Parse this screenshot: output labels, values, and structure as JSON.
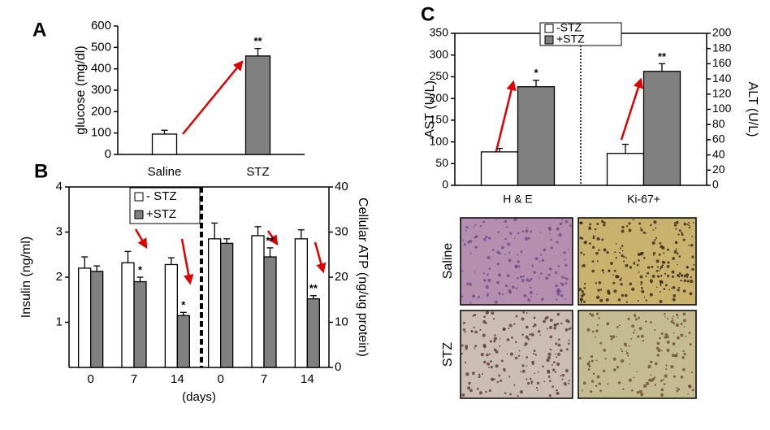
{
  "chart_data": [
    {
      "type": "bar",
      "panel": "A",
      "ylabel": "glucose (mg/dl)",
      "categories": [
        "Saline",
        "STZ"
      ],
      "values": [
        95,
        460
      ],
      "errors": [
        18,
        35
      ],
      "colors": [
        "#ffffff",
        "#808080"
      ],
      "annotations": [
        null,
        "**"
      ],
      "ylim": [
        0,
        600
      ],
      "yticks": [
        0,
        100,
        200,
        300,
        400,
        500,
        600
      ]
    },
    {
      "type": "bar",
      "panel": "B",
      "ylabel": "Insulin (ng/ml)",
      "y2label": "Cellular ATP (ng/ug protein)",
      "xlabel": "(days)",
      "categories": [
        "0",
        "7",
        "14",
        "0",
        "7",
        "14"
      ],
      "series": [
        {
          "name": "- STZ",
          "color": "#ffffff",
          "values": [
            2.2,
            2.32,
            2.28,
            null,
            null,
            null
          ],
          "errors": [
            0.25,
            0.25,
            0.15,
            null,
            null,
            null
          ]
        },
        {
          "name": "+STZ",
          "color": "#808080",
          "values": [
            2.13,
            1.9,
            1.15,
            null,
            null,
            null
          ],
          "errors": [
            0.12,
            0.1,
            0.07,
            null,
            null,
            null
          ],
          "annotations": [
            null,
            "*",
            "*",
            null,
            null,
            null
          ]
        },
        {
          "color": "#ffffff",
          "axis": "y2",
          "values": [
            null,
            null,
            null,
            28.5,
            29.2,
            28.5
          ],
          "errors": [
            null,
            null,
            null,
            3.5,
            2,
            2
          ]
        },
        {
          "color": "#808080",
          "axis": "y2",
          "values": [
            null,
            null,
            null,
            27.5,
            24.5,
            15.2
          ],
          "errors": [
            null,
            null,
            null,
            1,
            2,
            0.7
          ],
          "annotations": [
            null,
            null,
            null,
            null,
            "**",
            "**"
          ]
        }
      ],
      "ylim": [
        0,
        4
      ],
      "yticks": [
        1,
        2,
        3,
        4
      ],
      "y2lim": [
        0,
        40
      ],
      "y2ticks": [
        0,
        10,
        20,
        30,
        40
      ]
    },
    {
      "type": "bar",
      "panel": "C",
      "ylabel": "AST (U/L)",
      "y2label": "ALT (U/L)",
      "categories": [
        "H & E",
        "Ki-67+"
      ],
      "series": [
        {
          "name": "-STZ",
          "color": "#ffffff",
          "values": [
            77,
            null
          ],
          "errors": [
            8,
            null
          ]
        },
        {
          "name": "+STZ",
          "color": "#808080",
          "values": [
            227,
            null
          ],
          "errors": [
            15,
            null
          ],
          "annotations": [
            "*",
            null
          ]
        },
        {
          "color": "#ffffff",
          "axis": "y2",
          "values": [
            null,
            42
          ],
          "errors": [
            null,
            12
          ]
        },
        {
          "color": "#808080",
          "axis": "y2",
          "values": [
            null,
            150
          ],
          "errors": [
            null,
            10
          ],
          "annotations": [
            null,
            "**"
          ]
        }
      ],
      "ylim": [
        0,
        350
      ],
      "yticks": [
        0,
        50,
        100,
        150,
        200,
        250,
        300,
        350
      ],
      "y2lim": [
        0,
        200
      ],
      "y2ticks": [
        0,
        20,
        40,
        60,
        80,
        100,
        120,
        140,
        160,
        180,
        200
      ]
    }
  ],
  "micrographs": {
    "rows": [
      "Saline",
      "STZ"
    ]
  }
}
